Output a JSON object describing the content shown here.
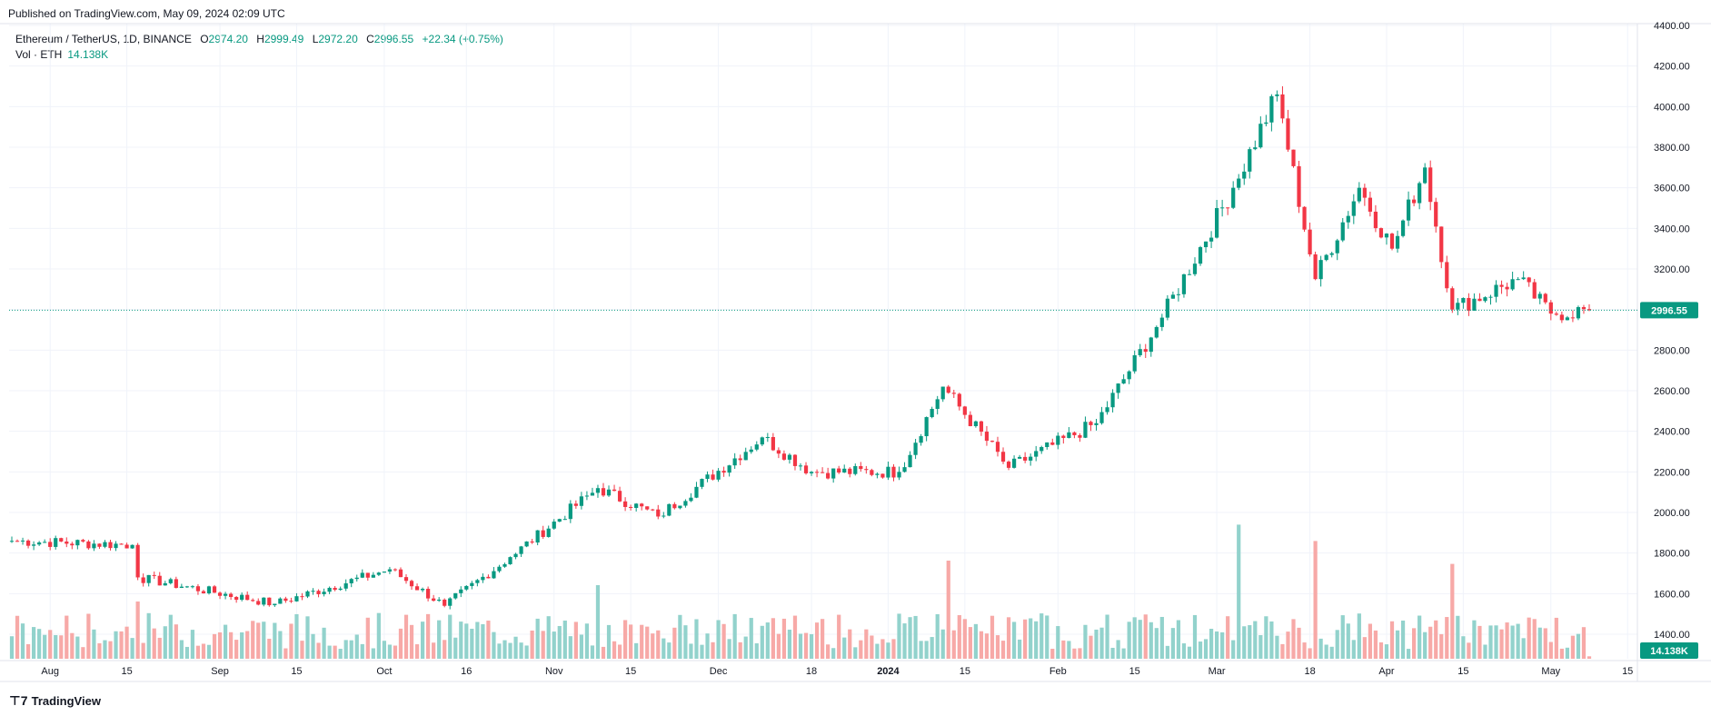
{
  "header": {
    "published": "Published on TradingView.com, May 09, 2024 02:09 UTC"
  },
  "legend": {
    "symbol": "Ethereum / TetherUS, 1D, BINANCE",
    "open_label": "O",
    "open": "2974.20",
    "high_label": "H",
    "high": "2999.49",
    "low_label": "L",
    "low": "2972.20",
    "close_label": "C",
    "close": "2996.55",
    "change": "+22.34 (+0.75%)",
    "volume_label": "Vol · ETH",
    "volume": "14.138K"
  },
  "footer": {
    "brand": "TradingView",
    "brand_icon": "tradingview-logo-icon"
  },
  "colors": {
    "up": "#089981",
    "down": "#f23645",
    "vol_up": "#92d2cc",
    "vol_down": "#f7a9a7",
    "grid": "#f0f3fa",
    "axis_text": "#131722"
  },
  "chart_data": {
    "type": "candlestick",
    "price_axis": {
      "ticks": [
        "4400.00",
        "4200.00",
        "4000.00",
        "3800.00",
        "3600.00",
        "3400.00",
        "3200.00",
        "3000.00",
        "2800.00",
        "2600.00",
        "2400.00",
        "2200.00",
        "2000.00",
        "1800.00",
        "1600.00",
        "1400.00"
      ],
      "range": [
        1380,
        4400
      ]
    },
    "time_axis": {
      "labels": [
        {
          "text": "Aug",
          "date": "2023-08-01"
        },
        {
          "text": "15",
          "date": "2023-08-15"
        },
        {
          "text": "Sep",
          "date": "2023-09-01"
        },
        {
          "text": "15",
          "date": "2023-09-15"
        },
        {
          "text": "Oct",
          "date": "2023-10-01"
        },
        {
          "text": "16",
          "date": "2023-10-16"
        },
        {
          "text": "Nov",
          "date": "2023-11-01"
        },
        {
          "text": "15",
          "date": "2023-11-15"
        },
        {
          "text": "Dec",
          "date": "2023-12-01"
        },
        {
          "text": "18",
          "date": "2023-12-18"
        },
        {
          "text": "2024",
          "date": "2024-01-01"
        },
        {
          "text": "15",
          "date": "2024-01-15"
        },
        {
          "text": "Feb",
          "date": "2024-02-01"
        },
        {
          "text": "15",
          "date": "2024-02-15"
        },
        {
          "text": "Mar",
          "date": "2024-03-01"
        },
        {
          "text": "18",
          "date": "2024-03-18"
        },
        {
          "text": "Apr",
          "date": "2024-04-01"
        },
        {
          "text": "15",
          "date": "2024-04-15"
        },
        {
          "text": "May",
          "date": "2024-05-01"
        },
        {
          "text": "15",
          "date": "2024-05-15"
        }
      ]
    },
    "last_price": {
      "value": 2996.55,
      "label": "2996.55"
    },
    "last_volume": {
      "label": "14.138K"
    },
    "key_points": [
      {
        "date": "2023-07-25",
        "close": 1860
      },
      {
        "date": "2023-08-16",
        "close": 1840
      },
      {
        "date": "2023-08-17",
        "close": 1680
      },
      {
        "date": "2023-09-11",
        "close": 1550
      },
      {
        "date": "2023-10-02",
        "close": 1720
      },
      {
        "date": "2023-10-12",
        "close": 1540
      },
      {
        "date": "2023-10-24",
        "close": 1780
      },
      {
        "date": "2023-11-09",
        "close": 2120
      },
      {
        "date": "2023-11-20",
        "close": 1980
      },
      {
        "date": "2023-12-09",
        "close": 2370
      },
      {
        "date": "2023-12-18",
        "close": 2200
      },
      {
        "date": "2024-01-03",
        "close": 2200
      },
      {
        "date": "2024-01-11",
        "close": 2620
      },
      {
        "date": "2024-01-23",
        "close": 2220
      },
      {
        "date": "2024-02-08",
        "close": 2440
      },
      {
        "date": "2024-02-20",
        "close": 2960
      },
      {
        "date": "2024-03-04",
        "close": 3600
      },
      {
        "date": "2024-03-12",
        "close": 4060
      },
      {
        "date": "2024-03-19",
        "close": 3150
      },
      {
        "date": "2024-03-27",
        "close": 3600
      },
      {
        "date": "2024-04-02",
        "close": 3300
      },
      {
        "date": "2024-04-08",
        "close": 3700
      },
      {
        "date": "2024-04-13",
        "close": 3000
      },
      {
        "date": "2024-04-25",
        "close": 3150
      },
      {
        "date": "2024-05-01",
        "close": 2980
      },
      {
        "date": "2024-05-08",
        "close": 2996.55
      }
    ],
    "volume_spikes": [
      {
        "date": "2023-08-17",
        "rel": 0.35
      },
      {
        "date": "2023-11-09",
        "rel": 0.45
      },
      {
        "date": "2024-01-12",
        "rel": 0.6
      },
      {
        "date": "2024-03-05",
        "rel": 0.82
      },
      {
        "date": "2024-03-19",
        "rel": 0.72
      },
      {
        "date": "2024-04-13",
        "rel": 0.58
      }
    ],
    "first_date": "2023-07-25",
    "last_date": "2024-05-08",
    "grid": true
  }
}
